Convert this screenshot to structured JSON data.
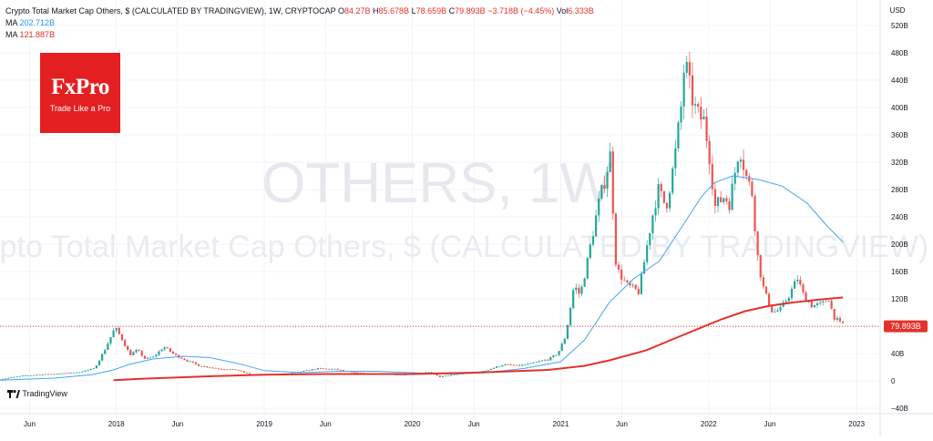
{
  "legend": {
    "title": "Crypto Total Market Cap Others, $ (CALCULATED BY TRADINGVIEW), 1W, CRYPTOCAP",
    "o_key": "O",
    "o_val": "84.27B",
    "h_key": "H",
    "h_val": "85.678B",
    "l_key": "L",
    "l_val": "78.659B",
    "c_key": "C",
    "c_val": "79.893B",
    "change": "−3.718B (−4.45%)",
    "vol_key": "Vol",
    "vol_val": "6.333B",
    "ma1_label": "MA",
    "ma1_value": "202.712B",
    "ma2_label": "MA",
    "ma2_value": "121.887B"
  },
  "logo": {
    "name": "FxPro",
    "tagline": "Trade Like a Pro"
  },
  "watermark": {
    "symbol": "OTHERS, 1W",
    "description": "Crypto Total Market Cap Others, $ (CALCULATED BY TRADINGVIEW)"
  },
  "brand": "TradingView",
  "colors": {
    "up": "#26a69a",
    "down": "#ef5350",
    "ma_fast": "#42a5f5",
    "ma_slow": "#e4312b",
    "price_line": "#e4312b",
    "grid": "#f0f3fa"
  },
  "chart_data": {
    "type": "candlestick",
    "y_unit": "USD",
    "ylim": [
      -40,
      520
    ],
    "y_ticks": [
      -40,
      0,
      40,
      80,
      120,
      160,
      200,
      240,
      280,
      320,
      360,
      400,
      440,
      480,
      520
    ],
    "y_tick_labels": [
      "−40B",
      "0",
      "40B",
      "80B",
      "120B",
      "160B",
      "200B",
      "240B",
      "280B",
      "320B",
      "360B",
      "400B",
      "440B",
      "480B",
      "520B"
    ],
    "x_range": [
      "2017-03-20",
      "2023-02-28"
    ],
    "x_ticks": [
      {
        "date": "2017-06-01",
        "label": "Jun"
      },
      {
        "date": "2018-01-01",
        "label": "2018"
      },
      {
        "date": "2018-06-01",
        "label": "Jun"
      },
      {
        "date": "2019-01-01",
        "label": "2019"
      },
      {
        "date": "2019-06-01",
        "label": "Jun"
      },
      {
        "date": "2020-01-01",
        "label": "2020"
      },
      {
        "date": "2020-06-01",
        "label": "Jun"
      },
      {
        "date": "2021-01-01",
        "label": "2021"
      },
      {
        "date": "2021-06-01",
        "label": "Jun"
      },
      {
        "date": "2022-01-01",
        "label": "2022"
      },
      {
        "date": "2022-06-01",
        "label": "Jun"
      },
      {
        "date": "2023-01-01",
        "label": "2023"
      }
    ],
    "last_price": 79.893,
    "last_price_label": "79.893B",
    "price_series": [
      [
        "2017-03-20",
        2
      ],
      [
        "2017-06-01",
        8
      ],
      [
        "2017-08-01",
        10
      ],
      [
        "2017-10-01",
        12
      ],
      [
        "2017-11-15",
        18
      ],
      [
        "2017-12-10",
        45
      ],
      [
        "2018-01-05",
        78
      ],
      [
        "2018-01-25",
        58
      ],
      [
        "2018-02-10",
        38
      ],
      [
        "2018-03-01",
        45
      ],
      [
        "2018-03-20",
        32
      ],
      [
        "2018-04-10",
        35
      ],
      [
        "2018-05-05",
        50
      ],
      [
        "2018-06-01",
        38
      ],
      [
        "2018-06-30",
        30
      ],
      [
        "2018-08-01",
        22
      ],
      [
        "2018-09-15",
        18
      ],
      [
        "2018-11-01",
        16
      ],
      [
        "2018-12-10",
        8
      ],
      [
        "2019-01-15",
        9
      ],
      [
        "2019-03-15",
        11
      ],
      [
        "2019-05-20",
        18
      ],
      [
        "2019-07-01",
        17
      ],
      [
        "2019-08-15",
        12
      ],
      [
        "2019-10-01",
        10
      ],
      [
        "2019-12-15",
        9
      ],
      [
        "2020-02-15",
        13
      ],
      [
        "2020-03-15",
        6
      ],
      [
        "2020-05-01",
        10
      ],
      [
        "2020-07-01",
        14
      ],
      [
        "2020-08-20",
        24
      ],
      [
        "2020-09-25",
        22
      ],
      [
        "2020-11-01",
        26
      ],
      [
        "2020-12-10",
        32
      ],
      [
        "2021-01-01",
        40
      ],
      [
        "2021-01-20",
        65
      ],
      [
        "2021-02-10",
        140
      ],
      [
        "2021-02-25",
        125
      ],
      [
        "2021-03-15",
        175
      ],
      [
        "2021-04-10",
        255
      ],
      [
        "2021-04-25",
        290
      ],
      [
        "2021-05-10",
        330
      ],
      [
        "2021-05-25",
        165
      ],
      [
        "2021-06-20",
        140
      ],
      [
        "2021-07-20",
        130
      ],
      [
        "2021-08-20",
        235
      ],
      [
        "2021-09-05",
        280
      ],
      [
        "2021-09-25",
        255
      ],
      [
        "2021-10-15",
        320
      ],
      [
        "2021-11-01",
        400
      ],
      [
        "2021-11-10",
        470
      ],
      [
        "2021-11-25",
        420
      ],
      [
        "2021-12-10",
        390
      ],
      [
        "2021-12-28",
        380
      ],
      [
        "2022-01-10",
        330
      ],
      [
        "2022-01-24",
        255
      ],
      [
        "2022-02-15",
        270
      ],
      [
        "2022-03-01",
        260
      ],
      [
        "2022-03-25",
        345
      ],
      [
        "2022-04-10",
        300
      ],
      [
        "2022-04-25",
        275
      ],
      [
        "2022-05-10",
        175
      ],
      [
        "2022-05-25",
        130
      ],
      [
        "2022-06-15",
        100
      ],
      [
        "2022-07-05",
        105
      ],
      [
        "2022-07-25",
        125
      ],
      [
        "2022-08-15",
        150
      ],
      [
        "2022-08-30",
        125
      ],
      [
        "2022-09-20",
        110
      ],
      [
        "2022-10-15",
        112
      ],
      [
        "2022-11-01",
        122
      ],
      [
        "2022-11-10",
        96
      ],
      [
        "2022-11-28",
        84
      ]
    ],
    "series": [
      {
        "type": "ma",
        "period": "MA",
        "value_label": "202.712B",
        "points": [
          [
            "2017-03-20",
            1
          ],
          [
            "2017-08-01",
            4
          ],
          [
            "2017-11-01",
            9
          ],
          [
            "2017-12-25",
            16
          ],
          [
            "2018-02-01",
            24
          ],
          [
            "2018-04-01",
            32
          ],
          [
            "2018-06-15",
            36
          ],
          [
            "2018-08-20",
            34
          ],
          [
            "2018-11-01",
            25
          ],
          [
            "2019-01-01",
            15
          ],
          [
            "2019-04-01",
            12
          ],
          [
            "2019-07-01",
            14
          ],
          [
            "2019-10-01",
            14
          ],
          [
            "2020-01-01",
            12
          ],
          [
            "2020-04-01",
            10
          ],
          [
            "2020-07-01",
            12
          ],
          [
            "2020-10-01",
            18
          ],
          [
            "2021-01-01",
            28
          ],
          [
            "2021-03-01",
            60
          ],
          [
            "2021-05-01",
            115
          ],
          [
            "2021-07-01",
            150
          ],
          [
            "2021-09-01",
            175
          ],
          [
            "2021-11-01",
            230
          ],
          [
            "2021-12-15",
            270
          ],
          [
            "2022-01-15",
            290
          ],
          [
            "2022-03-01",
            300
          ],
          [
            "2022-05-01",
            295
          ],
          [
            "2022-07-01",
            285
          ],
          [
            "2022-09-01",
            260
          ],
          [
            "2022-10-15",
            230
          ],
          [
            "2022-11-28",
            203
          ]
        ]
      },
      {
        "type": "ma",
        "period": "MA",
        "value_label": "121.887B",
        "points": [
          [
            "2017-12-25",
            1
          ],
          [
            "2018-03-01",
            3
          ],
          [
            "2018-06-01",
            5
          ],
          [
            "2018-09-01",
            7
          ],
          [
            "2019-01-01",
            9
          ],
          [
            "2019-06-01",
            10
          ],
          [
            "2020-01-01",
            10
          ],
          [
            "2020-06-01",
            12
          ],
          [
            "2020-12-01",
            16
          ],
          [
            "2021-03-01",
            22
          ],
          [
            "2021-05-01",
            30
          ],
          [
            "2021-08-01",
            45
          ],
          [
            "2021-10-01",
            60
          ],
          [
            "2021-12-01",
            75
          ],
          [
            "2022-02-01",
            90
          ],
          [
            "2022-04-01",
            102
          ],
          [
            "2022-06-01",
            110
          ],
          [
            "2022-08-01",
            115
          ],
          [
            "2022-10-01",
            119
          ],
          [
            "2022-11-28",
            122
          ]
        ]
      }
    ]
  }
}
